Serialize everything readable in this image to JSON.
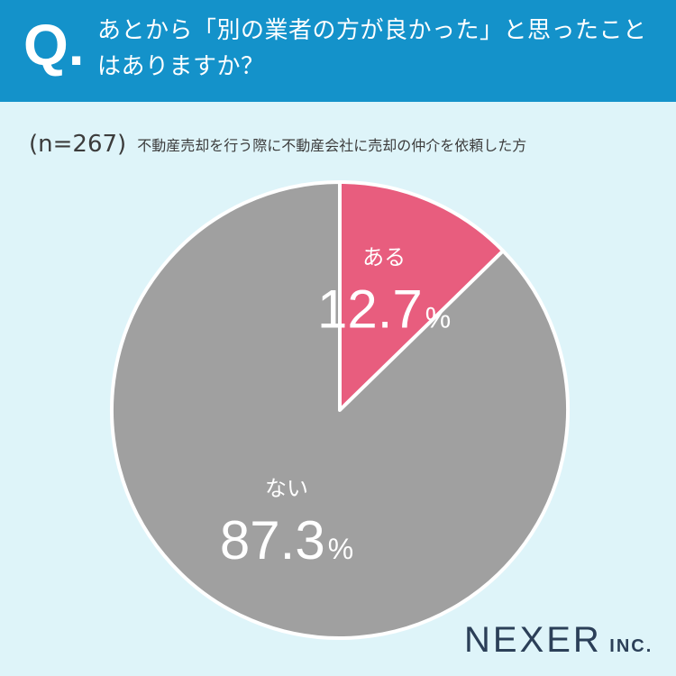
{
  "header": {
    "q_mark": "Q.",
    "question": "あとから「別の業者の方が良かった」と思ったことはありますか？",
    "bg_color": "#1492ca"
  },
  "sample": {
    "n_label": "(n=267)",
    "description": "不動産売却を行う際に不動産会社に売却の仲介を依頼した方"
  },
  "chart_data": {
    "type": "pie",
    "slices": [
      {
        "label": "ある",
        "value": 12.7,
        "display": "12.7",
        "unit": "%",
        "color": "#e85d7e"
      },
      {
        "label": "ない",
        "value": 87.3,
        "display": "87.3",
        "unit": "%",
        "color": "#a0a0a0"
      }
    ],
    "start": "12 o'clock",
    "direction": "clockwise"
  },
  "logo": {
    "main": "NEXER",
    "sub": "INC.",
    "color": "#2b3f58"
  }
}
